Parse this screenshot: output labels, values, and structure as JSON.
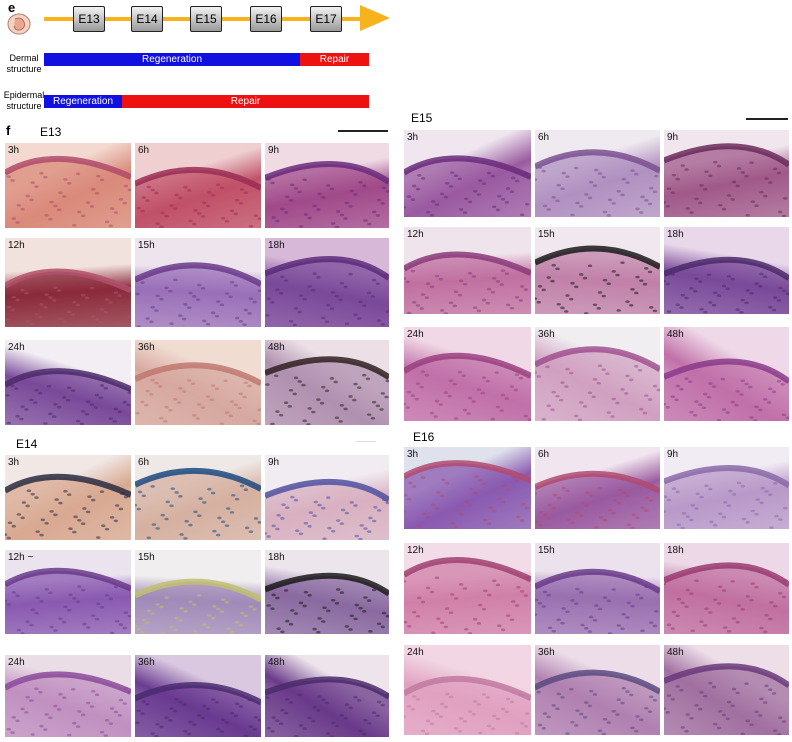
{
  "panel_e": {
    "letter": "e",
    "stages": [
      "E13",
      "E14",
      "E15",
      "E16",
      "E17"
    ],
    "dermal": {
      "label": "Dermal structure",
      "regeneration": "Regeneration",
      "repair": "Repair"
    },
    "epidermal": {
      "label": "Epidermal structure",
      "regeneration": "Regeneration",
      "repair": "Repair"
    },
    "colors": {
      "timeline": "#f7b21e",
      "regeneration": "#1010e0",
      "repair": "#ee1111"
    }
  },
  "panel_f": {
    "letter": "f",
    "groups": [
      {
        "title": "E13",
        "labels": [
          "3h",
          "6h",
          "9h",
          "12h",
          "15h",
          "18h",
          "24h",
          "36h",
          "48h"
        ]
      },
      {
        "title": "E14",
        "labels": [
          "3h",
          "6h",
          "9h",
          "12h ~",
          "15h",
          "18h",
          "24h",
          "36h",
          "48h"
        ]
      },
      {
        "title": "E15",
        "labels": [
          "3h",
          "6h",
          "9h",
          "12h",
          "15h",
          "18h",
          "24h",
          "36h",
          "48h"
        ]
      },
      {
        "title": "E16",
        "labels": [
          "3h",
          "6h",
          "9h",
          "12h",
          "15h",
          "18h",
          "24h",
          "36h",
          "48h"
        ]
      }
    ]
  }
}
